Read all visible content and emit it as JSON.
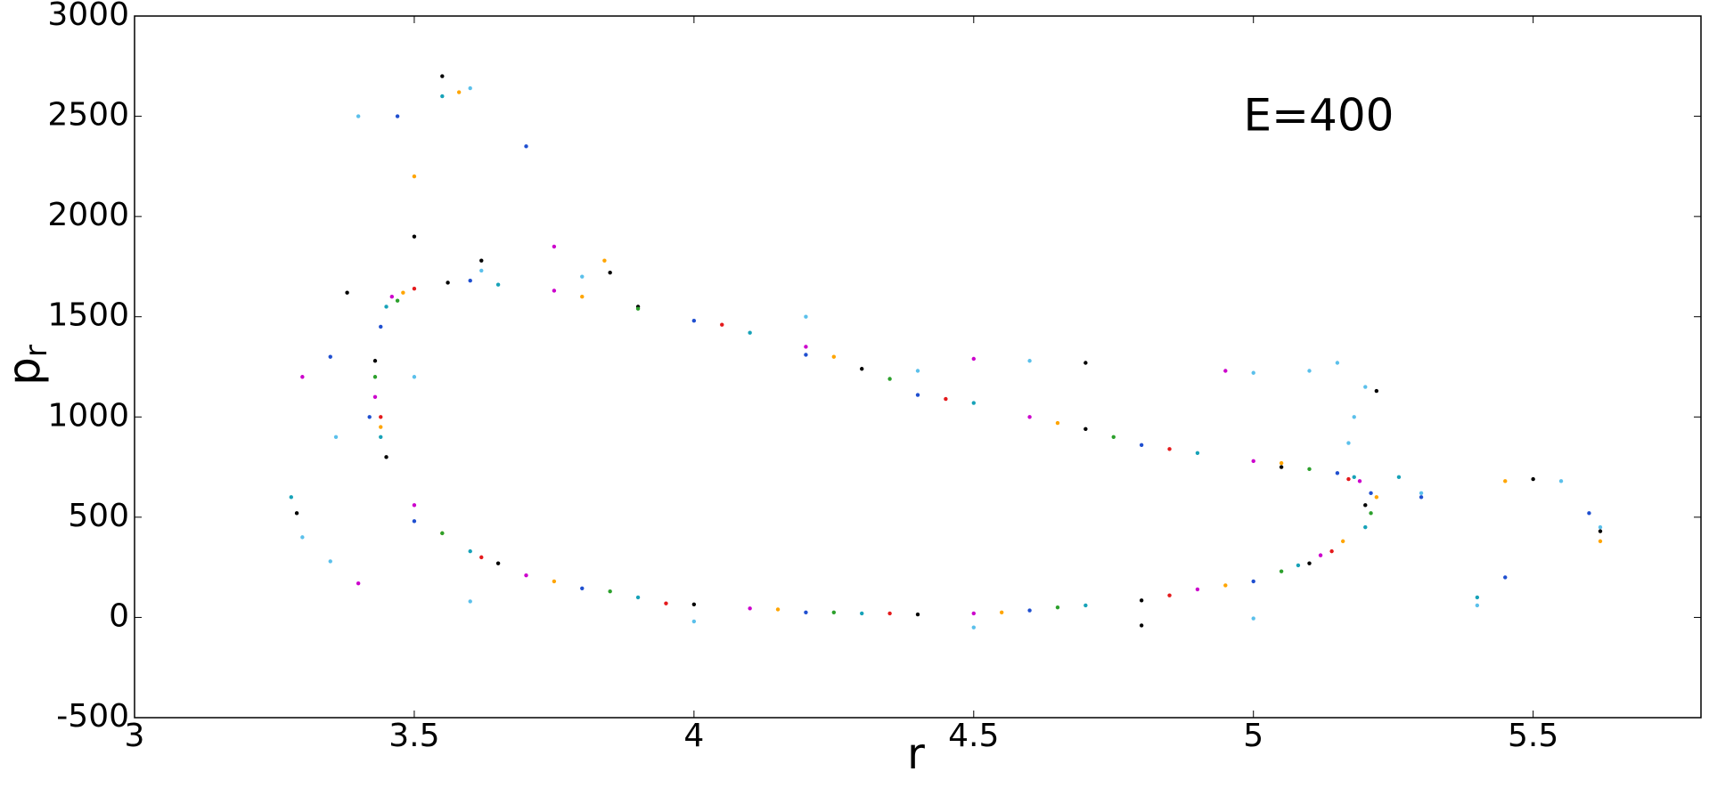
{
  "chart_data": {
    "type": "scatter",
    "x_label": "r",
    "y_label": "p",
    "y_label_subscript": "r",
    "annotation": "E=400",
    "xlim": [
      3,
      5.8
    ],
    "xticks": [
      3,
      3.5,
      4,
      4.5,
      5,
      5.5
    ],
    "ylim": [
      -500,
      3000
    ],
    "yticks": [
      -500,
      0,
      500,
      1000,
      1500,
      2000,
      2500,
      3000
    ],
    "grid": false,
    "series": [
      {
        "color": "#000000",
        "x": [
          3.43,
          3.56,
          3.9,
          4.3,
          4.7,
          5.05,
          5.2,
          5.1,
          4.8,
          4.4,
          4.0,
          3.65,
          3.45,
          3.29,
          3.38,
          3.55,
          3.62,
          4.7,
          5.22,
          5.5,
          5.62,
          4.8,
          3.5,
          3.85
        ],
        "y": [
          1280,
          1670,
          1550,
          1240,
          940,
          750,
          560,
          270,
          85,
          15,
          65,
          270,
          800,
          520,
          1620,
          2700,
          1780,
          1270,
          1130,
          690,
          430,
          -40,
          1900,
          1720
        ]
      },
      {
        "color": "#1f4fd0",
        "x": [
          3.44,
          3.6,
          4.0,
          4.4,
          4.8,
          5.15,
          5.21,
          5.0,
          4.6,
          4.2,
          3.8,
          3.5,
          3.42,
          3.35,
          3.47,
          3.7,
          5.3,
          5.6,
          5.45,
          4.2
        ],
        "y": [
          1450,
          1680,
          1480,
          1110,
          860,
          720,
          620,
          180,
          35,
          25,
          145,
          480,
          1000,
          1300,
          2500,
          2350,
          600,
          520,
          200,
          1310
        ]
      },
      {
        "color": "#17a2b8",
        "x": [
          3.45,
          3.65,
          4.1,
          4.5,
          4.9,
          5.18,
          5.2,
          5.08,
          4.7,
          4.3,
          3.9,
          3.6,
          3.44,
          3.28,
          3.55,
          5.26,
          5.4
        ],
        "y": [
          1550,
          1660,
          1420,
          1070,
          820,
          700,
          450,
          260,
          60,
          20,
          100,
          330,
          900,
          600,
          2600,
          700,
          100
        ]
      },
      {
        "color": "#cc00cc",
        "x": [
          3.46,
          3.75,
          4.2,
          4.6,
          5.0,
          5.19,
          5.12,
          4.9,
          4.5,
          4.1,
          3.7,
          3.5,
          3.43,
          3.4,
          4.5,
          4.95,
          3.3,
          3.75
        ],
        "y": [
          1600,
          1630,
          1350,
          1000,
          780,
          680,
          310,
          140,
          20,
          45,
          210,
          560,
          1100,
          170,
          1290,
          1230,
          1200,
          1850
        ]
      },
      {
        "color": "#ffa500",
        "x": [
          3.48,
          3.8,
          4.25,
          4.65,
          5.05,
          5.22,
          5.16,
          4.95,
          4.55,
          4.15,
          3.75,
          3.55,
          3.44,
          3.5,
          3.58,
          3.84,
          5.45,
          5.62
        ],
        "y": [
          1620,
          1600,
          1300,
          970,
          770,
          600,
          380,
          160,
          25,
          40,
          180,
          420,
          950,
          2200,
          2620,
          1780,
          680,
          380
        ]
      },
      {
        "color": "#5bc0eb",
        "x": [
          3.3,
          3.36,
          3.5,
          3.62,
          3.8,
          4.2,
          4.6,
          5.0,
          5.15,
          5.2,
          5.17,
          5.3,
          5.55,
          5.62,
          5.4,
          5.0,
          4.5,
          4.0,
          3.6,
          3.35,
          3.4,
          3.6,
          4.4,
          5.1,
          5.18
        ],
        "y": [
          400,
          900,
          1200,
          1730,
          1700,
          1500,
          1280,
          1220,
          1270,
          1150,
          870,
          620,
          680,
          450,
          60,
          -5,
          -50,
          -20,
          80,
          280,
          2500,
          2640,
          1230,
          1230,
          1000
        ]
      },
      {
        "color": "#2ca02c",
        "x": [
          3.47,
          3.9,
          4.35,
          4.75,
          5.1,
          5.21,
          5.05,
          4.65,
          4.25,
          3.85,
          3.55,
          3.43
        ],
        "y": [
          1580,
          1540,
          1190,
          900,
          740,
          520,
          230,
          50,
          25,
          130,
          420,
          1200
        ]
      },
      {
        "color": "#e41a1c",
        "x": [
          3.5,
          4.05,
          4.45,
          4.85,
          5.17,
          5.14,
          4.85,
          4.35,
          3.95,
          3.62,
          3.44
        ],
        "y": [
          1640,
          1460,
          1090,
          840,
          690,
          330,
          110,
          20,
          70,
          300,
          1000
        ]
      }
    ]
  }
}
